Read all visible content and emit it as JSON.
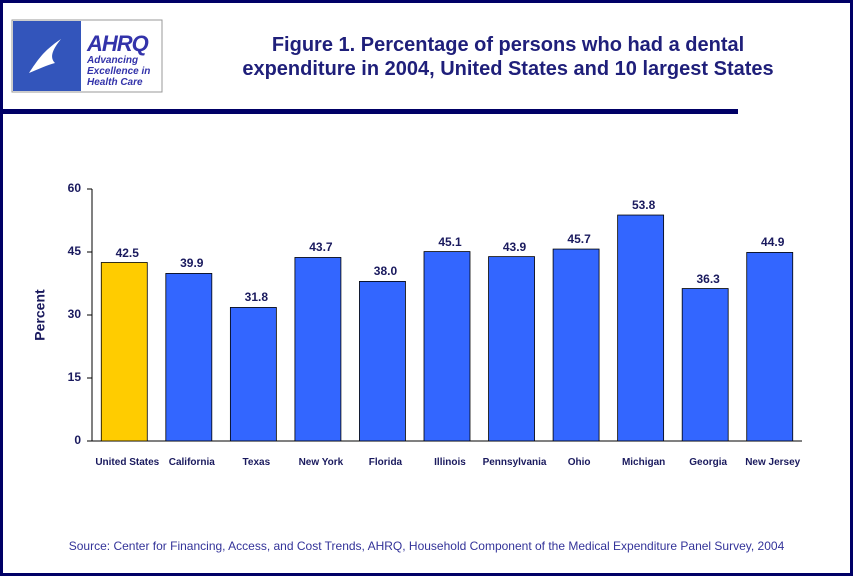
{
  "logo": {
    "name": "AHRQ",
    "tagline": "Advancing Excellence in Health Care"
  },
  "chart_data": {
    "type": "bar",
    "title": "Figure 1. Percentage of persons who had a dental expenditure in 2004, United States and 10 largest States",
    "y_label": "Percent",
    "categories": [
      "United States",
      "California",
      "Texas",
      "New York",
      "Florida",
      "Illinois",
      "Pennsylvania",
      "Ohio",
      "Michigan",
      "Georgia",
      "New Jersey"
    ],
    "values": [
      42.5,
      39.9,
      31.8,
      43.7,
      38.0,
      45.1,
      43.9,
      45.7,
      53.8,
      36.3,
      44.9
    ],
    "value_labels": [
      "42.5",
      "39.9",
      "31.8",
      "43.7",
      "38.0",
      "45.1",
      "43.9",
      "45.7",
      "53.8",
      "36.3",
      "44.9"
    ],
    "colors": [
      "#ffcc00",
      "#3366ff",
      "#3366ff",
      "#3366ff",
      "#3366ff",
      "#3366ff",
      "#3366ff",
      "#3366ff",
      "#3366ff",
      "#3366ff",
      "#3366ff"
    ],
    "ylim": [
      0,
      60
    ],
    "yticks": [
      0,
      15,
      30,
      45,
      60
    ],
    "grid": false,
    "source": "Source: Center for Financing, Access, and Cost Trends, AHRQ, Household Component of the Medical Expenditure Panel Survey, 2004"
  }
}
